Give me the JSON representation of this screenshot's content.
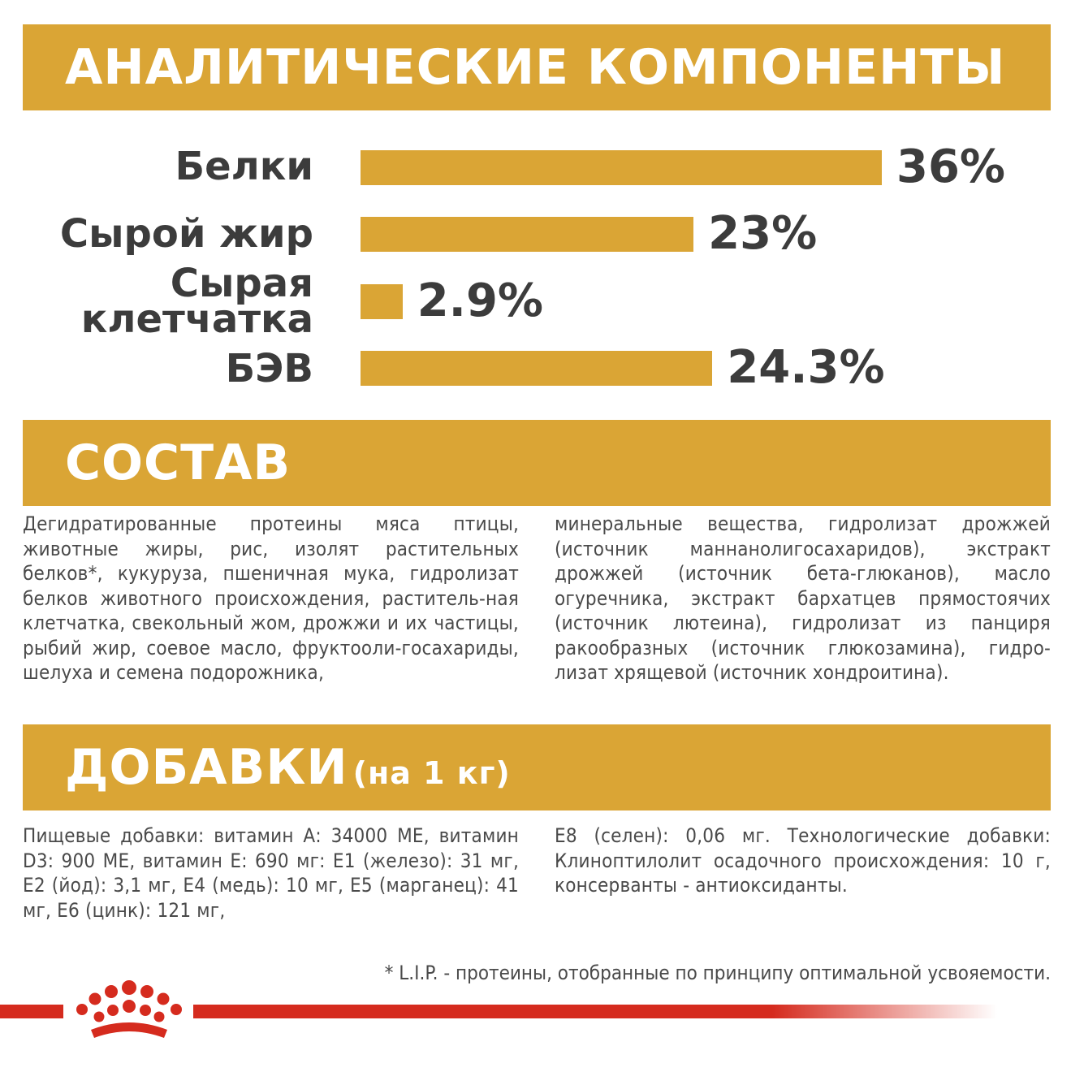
{
  "analytics": {
    "heading": "АНАЛИТИЧЕСКИЕ КОМПОНЕНТЫ",
    "rows": [
      {
        "label": "Белки",
        "value": "36%",
        "percent": 36
      },
      {
        "label": "Сырой жир",
        "value": "23%",
        "percent": 23
      },
      {
        "label": "Сырая клетчатка",
        "value": "2.9%",
        "percent": 2.9
      },
      {
        "label": "БЭВ",
        "value": "24.3%",
        "percent": 24.3
      }
    ]
  },
  "composition": {
    "heading": "СОСТАВ",
    "col1": "Дегидратированные протеины мяса птицы, животные жиры, рис, изолят растительных белков*, кукуруза, пшеничная мука, гидролизат белков животного происхождения, раститель-ная клетчатка, свекольный жом, дрожжи и их частицы, рыбий жир, соевое масло, фруктоoли-госахариды, шелуха и семена подорожника,",
    "col2": "минеральные вещества, гидролизат дрожжей (источник маннанолигосахаридов), экстракт дрожжей (источник бета-глюканов), масло огуречника, экстракт бархатцев прямостоячих (источник лютеина), гидролизат из панциря ракообразных (источник глюкозамина), гидро-лизат хрящевой (источник хондроитина)."
  },
  "additives": {
    "heading": "ДОБАВКИ",
    "heading_sub": "(на 1 кг)",
    "col1": "Пищевые добавки: витамин А: 34000 МЕ, витамин D3: 900 МЕ, витамин Е: 690 мг: E1 (железо): 31 мг, E2 (йод): 3,1 мг, E4 (медь): 10 мг, E5 (марганец): 41 мг, E6 (цинк): 121 мг,",
    "col2": "E8 (селен): 0,06 мг. Технологические добавки: Клиноптилолит осадочного происхождения: 10 г, консерванты - антиоксиданты."
  },
  "footnote": "* L.I.P. - протеины, отобранные по принципу оптимальной усвояемости.",
  "colors": {
    "gold": "#daa535",
    "red": "#d52b1e",
    "text": "#3c3c3c"
  },
  "logo_icon": "royal-canin-crown-icon"
}
